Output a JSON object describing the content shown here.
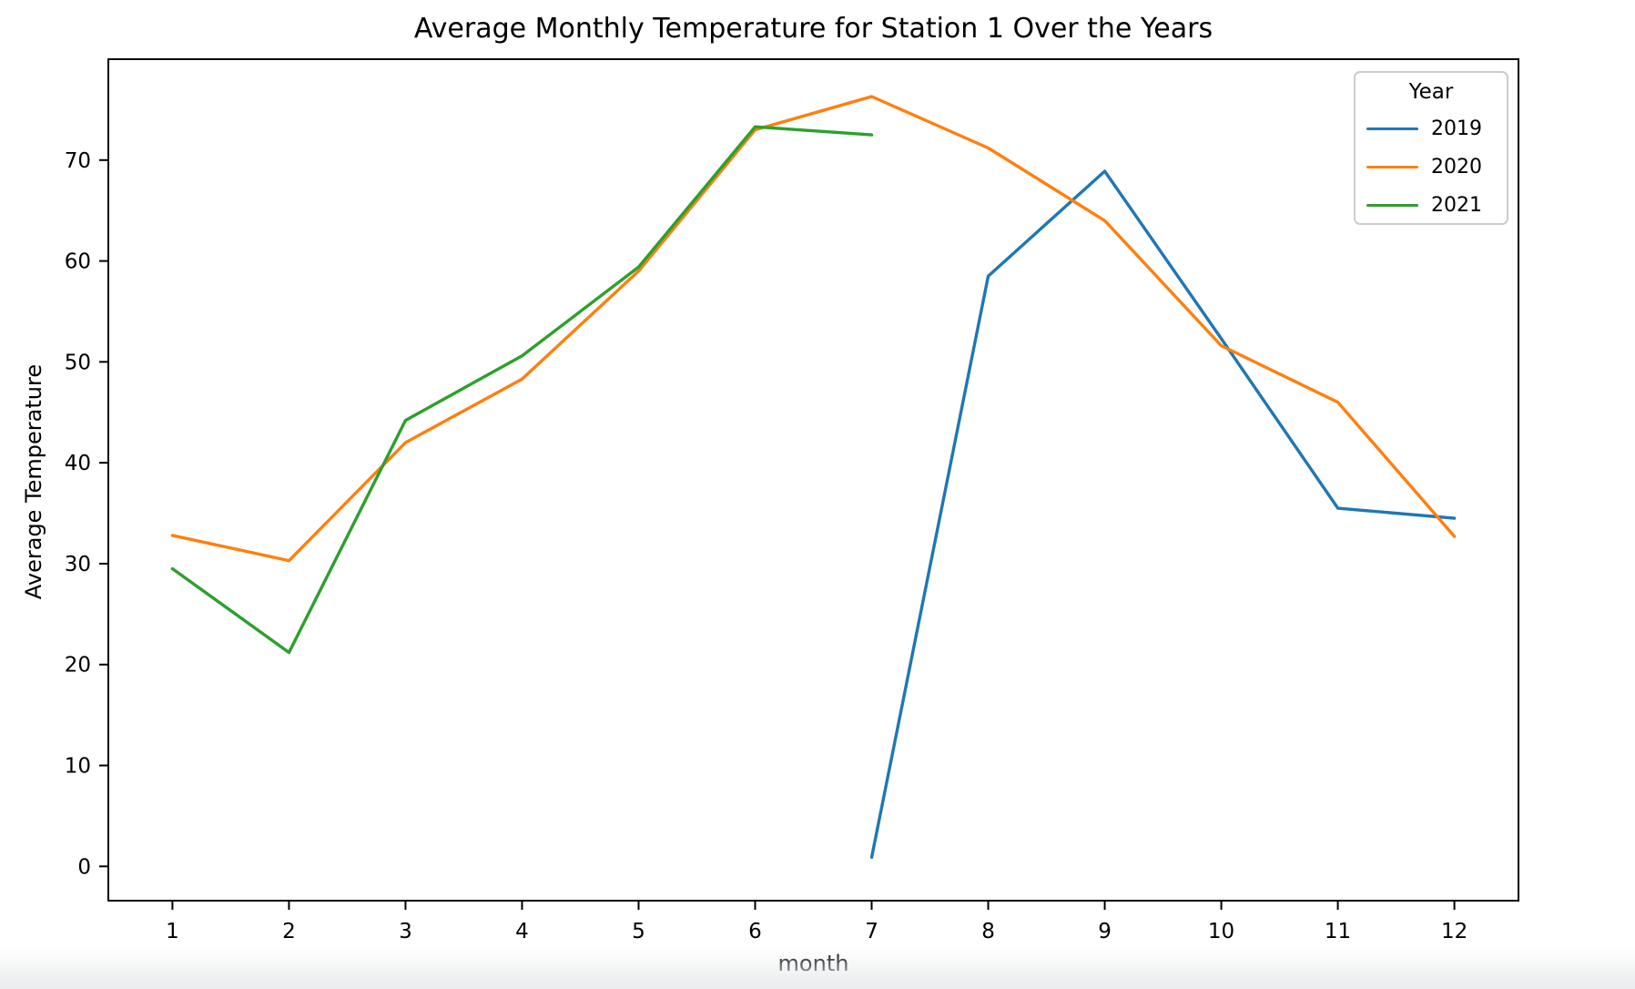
{
  "figure": {
    "background": "#ffffff",
    "text_color": "#000000",
    "spine_color": "#000000",
    "legend_border_color": "#cccccc"
  },
  "chart_data": {
    "type": "line",
    "title": "Average Monthly Temperature for Station 1 Over the Years",
    "xlabel": "month",
    "ylabel": "Average Temperature",
    "grid": false,
    "xlim": [
      0.45,
      12.55
    ],
    "ylim": [
      -3.4,
      80.0
    ],
    "x": [
      1,
      2,
      3,
      4,
      5,
      6,
      7,
      8,
      9,
      10,
      11,
      12
    ],
    "x_ticks": [
      "1",
      "2",
      "3",
      "4",
      "5",
      "6",
      "7",
      "8",
      "9",
      "10",
      "11",
      "12"
    ],
    "y_ticks": [
      "0",
      "10",
      "20",
      "30",
      "40",
      "50",
      "60",
      "70"
    ],
    "legend": {
      "title": "Year",
      "position": "upper right"
    },
    "series": [
      {
        "name": "2019",
        "color": "#1f77b4",
        "values": [
          null,
          null,
          null,
          null,
          null,
          null,
          0.9,
          58.5,
          68.9,
          52.3,
          35.5,
          34.5
        ]
      },
      {
        "name": "2020",
        "color": "#ff7f0e",
        "values": [
          32.8,
          30.3,
          42.0,
          48.3,
          59.0,
          73.0,
          76.3,
          71.2,
          64.0,
          51.6,
          46.0,
          32.7
        ]
      },
      {
        "name": "2021",
        "color": "#2ca02c",
        "values": [
          29.5,
          21.2,
          44.2,
          50.6,
          59.4,
          73.3,
          72.5,
          null,
          null,
          null,
          null,
          null
        ]
      }
    ]
  }
}
